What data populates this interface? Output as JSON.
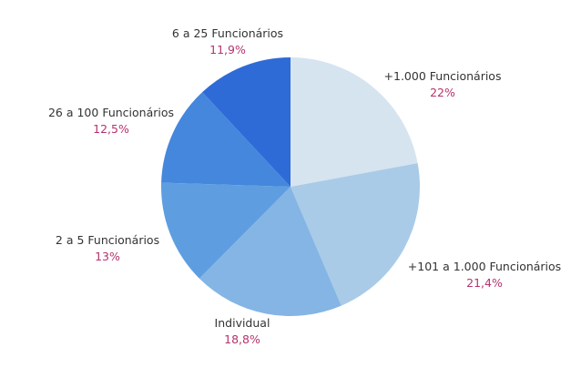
{
  "chart_data": {
    "type": "pie",
    "categories": [
      "+1.000 Funcionários",
      "+101 a 1.000 Funcionários",
      "Individual",
      "2 a 5 Funcionários",
      "26 a 100 Funcionários",
      "6 a 25 Funcionários"
    ],
    "values": [
      22,
      21.4,
      18.8,
      13,
      12.5,
      11.9
    ],
    "value_labels": [
      "22%",
      "21,4%",
      "18,8%",
      "13%",
      "12,5%",
      "11,9%"
    ],
    "colors": [
      "#d6e4f0",
      "#a9cbe8",
      "#84b5e4",
      "#5e9ee0",
      "#4587dc",
      "#2f6bd6"
    ],
    "label_color": "#333333",
    "value_label_color": "#b5336e",
    "start_angle_deg": 0,
    "direction": "clockwise",
    "title": "",
    "legend": "none"
  }
}
